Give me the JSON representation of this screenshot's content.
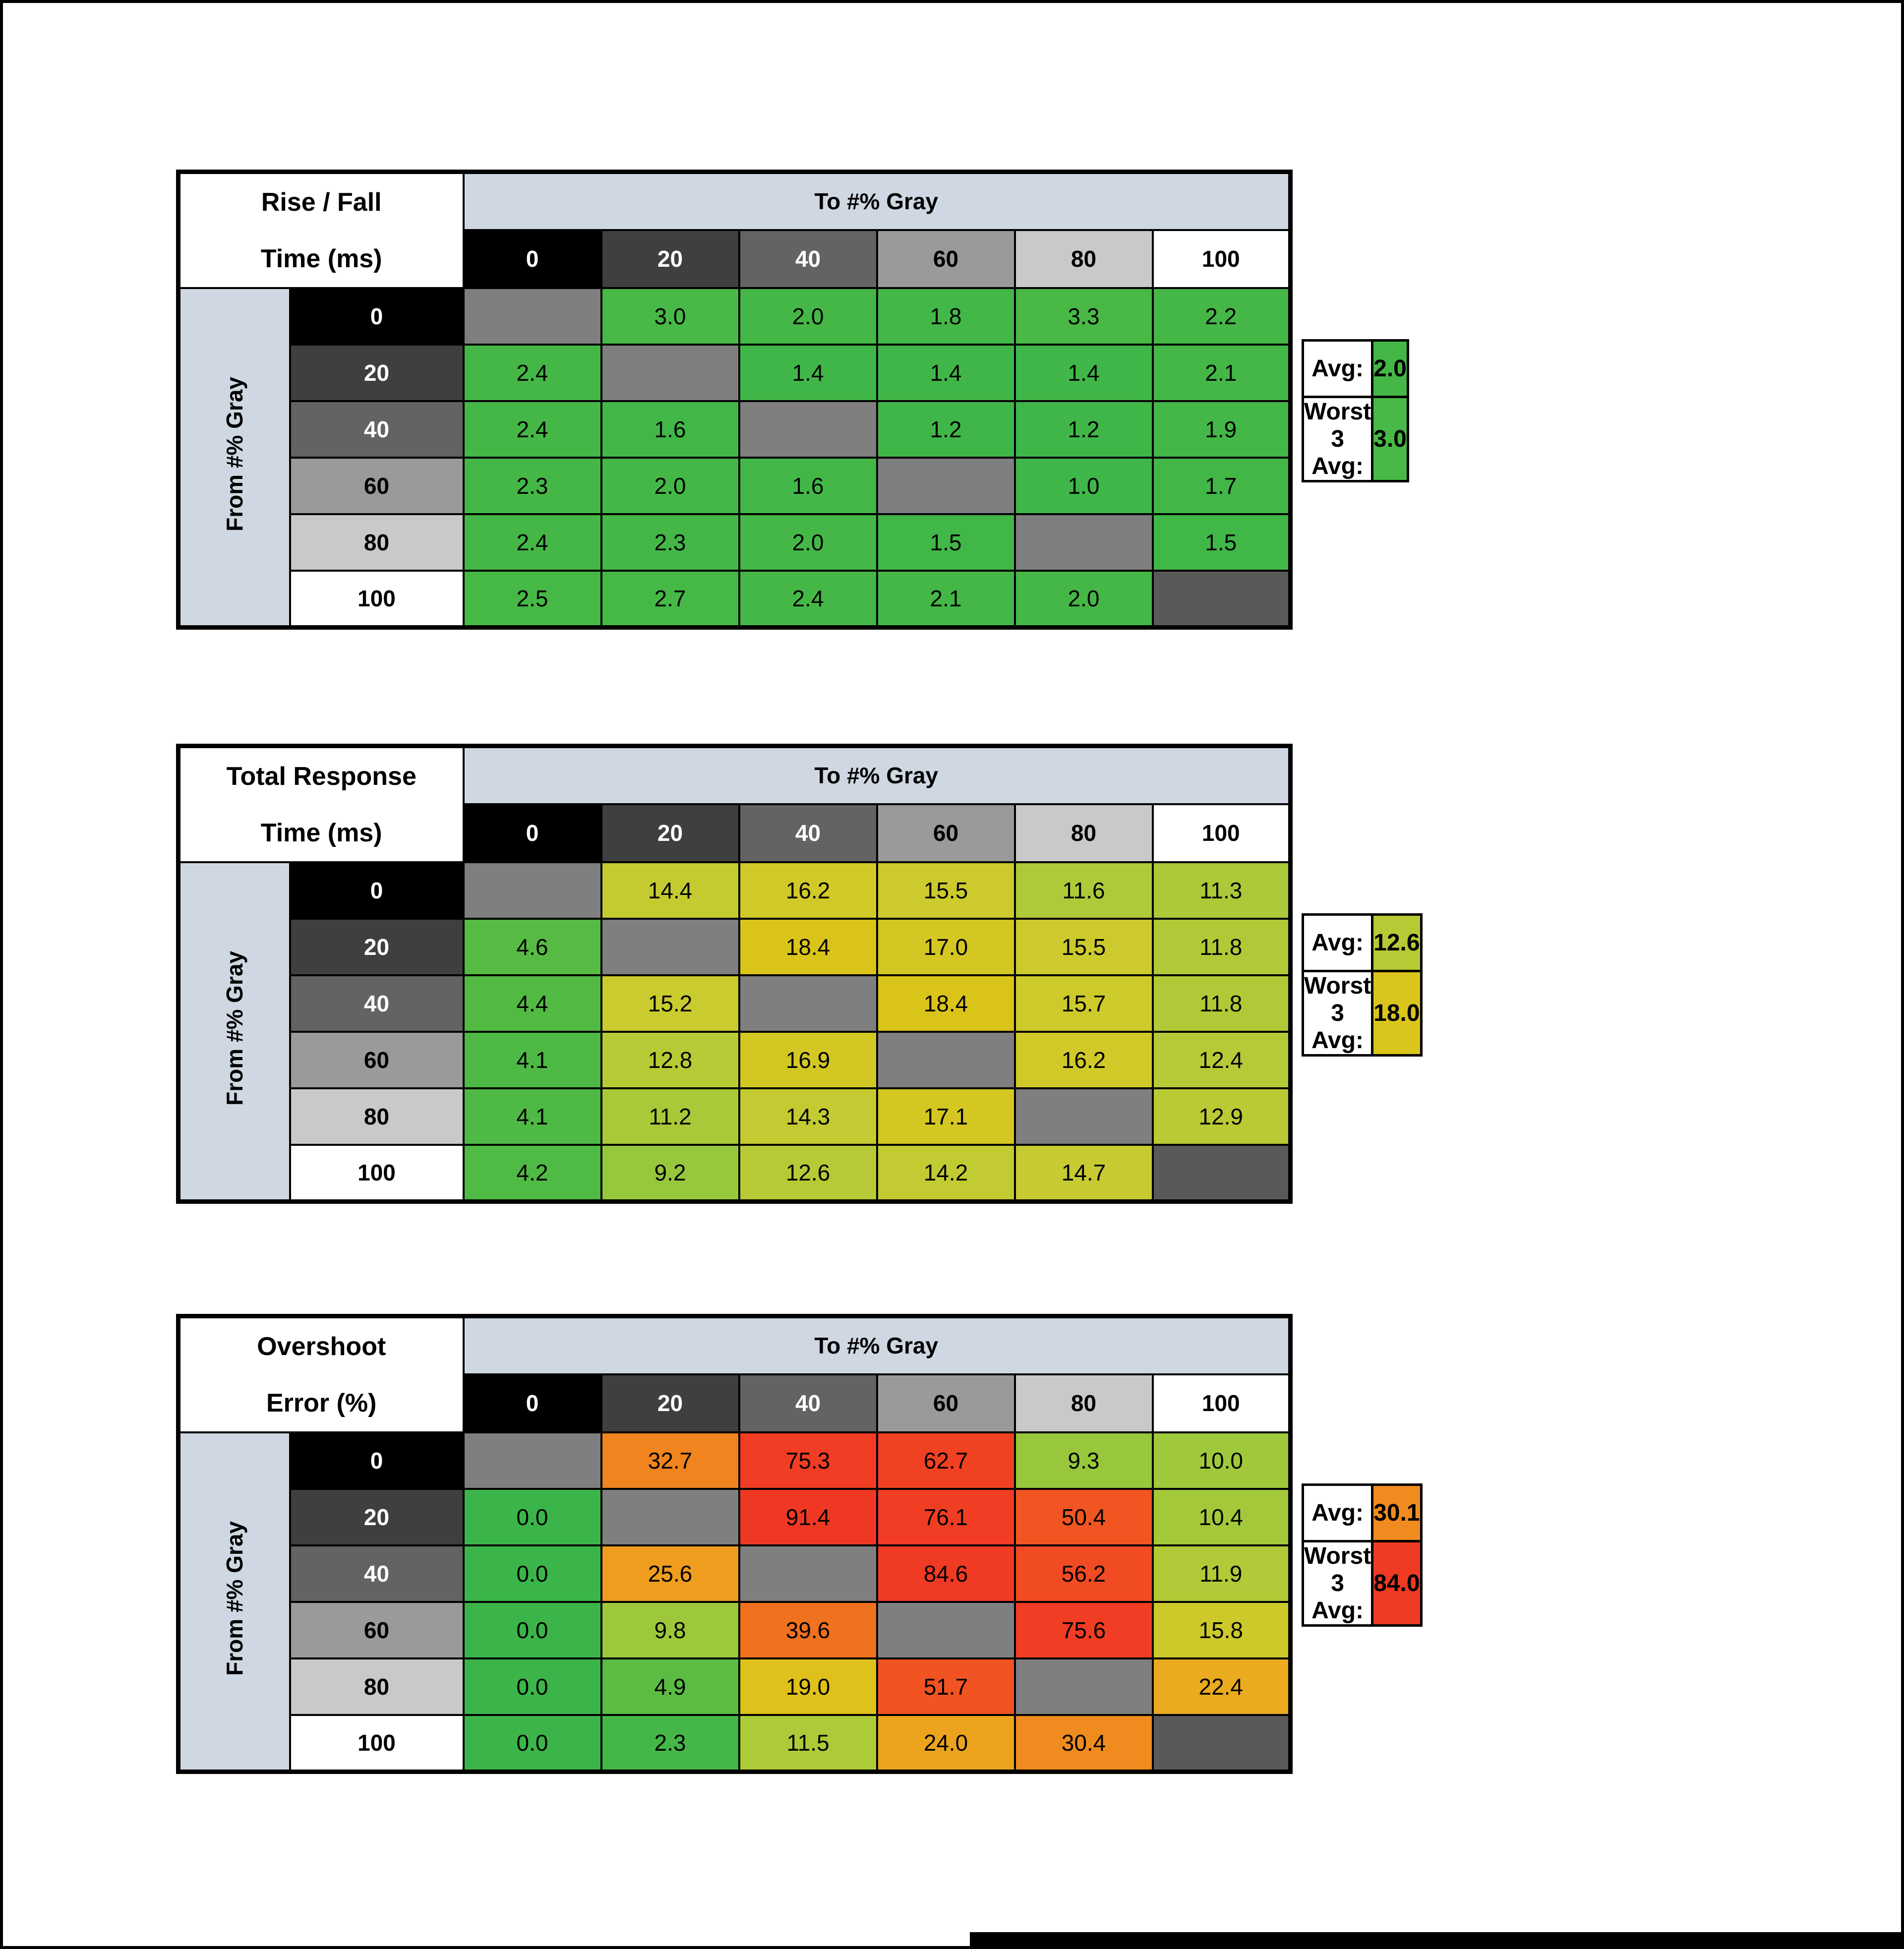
{
  "page": {
    "background": "#ffffff",
    "border_color": "#000000"
  },
  "colors": {
    "header_band": "#cfd8e2",
    "corner_bg": "#ffffff",
    "diagonal": "#7f7f7f",
    "diagonal_last": "#595959",
    "cell_border": "#000000",
    "colormap": [
      [
        0,
        "#3bb54a"
      ],
      [
        4,
        "#4cb944"
      ],
      [
        8,
        "#8cc63e"
      ],
      [
        12,
        "#b2ca37"
      ],
      [
        15,
        "#c9cb30"
      ],
      [
        18.5,
        "#dcc419"
      ],
      [
        22,
        "#eaad1f"
      ],
      [
        28,
        "#f0921f"
      ],
      [
        36,
        "#f07b1e"
      ],
      [
        48,
        "#f15a22"
      ],
      [
        62,
        "#f14123"
      ],
      [
        100,
        "#ee3524"
      ]
    ],
    "gray_levels": [
      {
        "label": "0",
        "bg": "#000000",
        "fg": "#ffffff"
      },
      {
        "label": "20",
        "bg": "#3f3f3f",
        "fg": "#ffffff"
      },
      {
        "label": "40",
        "bg": "#636363",
        "fg": "#ffffff"
      },
      {
        "label": "60",
        "bg": "#9a9a9a",
        "fg": "#000000"
      },
      {
        "label": "80",
        "bg": "#c9c9c9",
        "fg": "#000000"
      },
      {
        "label": "100",
        "bg": "#ffffff",
        "fg": "#000000"
      }
    ]
  },
  "labels": {
    "to_header": "To #% Gray",
    "from_header": "From #% Gray",
    "avg": "Avg:",
    "worst3": "Worst 3 Avg:"
  },
  "chart_data": [
    {
      "type": "heatmap",
      "name": "rise-fall-time-table",
      "title_line1": "Rise / Fall",
      "title_line2": "Time (ms)",
      "x_label": "To #% Gray",
      "y_label": "From #% Gray",
      "x": [
        0,
        20,
        40,
        60,
        80,
        100
      ],
      "y": [
        0,
        20,
        40,
        60,
        80,
        100
      ],
      "values": [
        [
          null,
          3.0,
          2.0,
          1.8,
          3.3,
          2.2
        ],
        [
          2.4,
          null,
          1.4,
          1.4,
          1.4,
          2.1
        ],
        [
          2.4,
          1.6,
          null,
          1.2,
          1.2,
          1.9
        ],
        [
          2.3,
          2.0,
          1.6,
          null,
          1.0,
          1.7
        ],
        [
          2.4,
          2.3,
          2.0,
          1.5,
          null,
          1.5
        ],
        [
          2.5,
          2.7,
          2.4,
          2.1,
          2.0,
          null
        ]
      ],
      "avg": 2.0,
      "worst3_avg": 3.0
    },
    {
      "type": "heatmap",
      "name": "total-response-time-table",
      "title_line1": "Total Response",
      "title_line2": "Time (ms)",
      "x_label": "To #% Gray",
      "y_label": "From #% Gray",
      "x": [
        0,
        20,
        40,
        60,
        80,
        100
      ],
      "y": [
        0,
        20,
        40,
        60,
        80,
        100
      ],
      "values": [
        [
          null,
          14.4,
          16.2,
          15.5,
          11.6,
          11.3
        ],
        [
          4.6,
          null,
          18.4,
          17.0,
          15.5,
          11.8
        ],
        [
          4.4,
          15.2,
          null,
          18.4,
          15.7,
          11.8
        ],
        [
          4.1,
          12.8,
          16.9,
          null,
          16.2,
          12.4
        ],
        [
          4.1,
          11.2,
          14.3,
          17.1,
          null,
          12.9
        ],
        [
          4.2,
          9.2,
          12.6,
          14.2,
          14.7,
          null
        ]
      ],
      "avg": 12.6,
      "worst3_avg": 18.0
    },
    {
      "type": "heatmap",
      "name": "overshoot-error-table",
      "title_line1": "Overshoot",
      "title_line2": "Error (%)",
      "x_label": "To #% Gray",
      "y_label": "From #% Gray",
      "x": [
        0,
        20,
        40,
        60,
        80,
        100
      ],
      "y": [
        0,
        20,
        40,
        60,
        80,
        100
      ],
      "values": [
        [
          null,
          32.7,
          75.3,
          62.7,
          9.3,
          10.0
        ],
        [
          0.0,
          null,
          91.4,
          76.1,
          50.4,
          10.4
        ],
        [
          0.0,
          25.6,
          null,
          84.6,
          56.2,
          11.9
        ],
        [
          0.0,
          9.8,
          39.6,
          null,
          75.6,
          15.8
        ],
        [
          0.0,
          4.9,
          19.0,
          51.7,
          null,
          22.4
        ],
        [
          0.0,
          2.3,
          11.5,
          24.0,
          30.4,
          null
        ]
      ],
      "avg": 30.1,
      "worst3_avg": 84.0
    }
  ],
  "layout_tops": [
    342,
    1500,
    2650
  ]
}
